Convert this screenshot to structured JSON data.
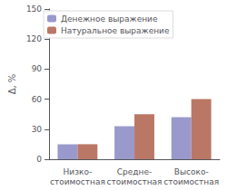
{
  "chart_data": {
    "type": "bar",
    "categories": [
      "Низко-\nстоимостная",
      "Средне-\nстоимостная",
      "Высоко-\nстоимостная"
    ],
    "series": [
      {
        "name": "Денежное выражение",
        "color": "#9999cc",
        "values": [
          15,
          33,
          42
        ]
      },
      {
        "name": "Натуральное выражение",
        "color": "#bb7766",
        "values": [
          15,
          45,
          60
        ]
      }
    ],
    "ylabel": "Δ, %",
    "ylim": [
      0,
      150
    ],
    "yticks": [
      0,
      30,
      60,
      90,
      120,
      150
    ],
    "grid": false,
    "legend": "upper left"
  }
}
